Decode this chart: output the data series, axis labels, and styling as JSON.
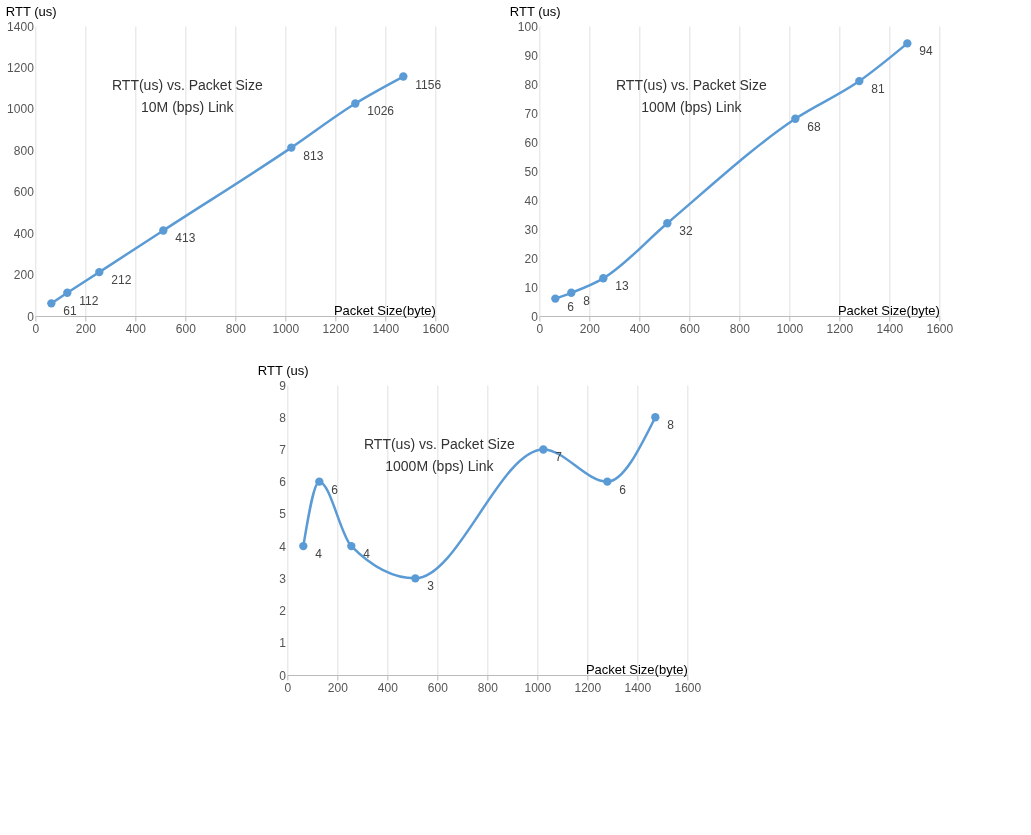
{
  "chart_data": [
    {
      "type": "line",
      "title": "RTT(us) vs. Packet Size",
      "subtitle": "10M (bps) Link",
      "xlabel": "Packet Size(byte)",
      "ylabel": "RTT (us)",
      "x": [
        64,
        128,
        256,
        512,
        1024,
        1280,
        1472
      ],
      "series": [
        {
          "color": "#5b9bd5",
          "values": [
            61,
            112,
            212,
            413,
            813,
            1026,
            1156
          ]
        }
      ],
      "xlim": [
        0,
        1600
      ],
      "xticks": [
        0,
        200,
        400,
        600,
        800,
        1000,
        1200,
        1400,
        1600
      ],
      "ylim": [
        0,
        1400
      ],
      "yticks": [
        0,
        200,
        400,
        600,
        800,
        1000,
        1200,
        1400
      ],
      "grid": "x",
      "marker": "circle",
      "data_labels": true
    },
    {
      "type": "line",
      "title": "RTT(us) vs. Packet Size",
      "subtitle": "100M (bps) Link",
      "xlabel": "Packet Size(byte)",
      "ylabel": "RTT (us)",
      "x": [
        64,
        128,
        256,
        512,
        1024,
        1280,
        1472
      ],
      "series": [
        {
          "color": "#5b9bd5",
          "values": [
            6,
            8,
            13,
            32,
            68,
            81,
            94
          ]
        }
      ],
      "xlim": [
        0,
        1600
      ],
      "xticks": [
        0,
        200,
        400,
        600,
        800,
        1000,
        1200,
        1400,
        1600
      ],
      "ylim": [
        0,
        100
      ],
      "yticks": [
        0,
        10,
        20,
        30,
        40,
        50,
        60,
        70,
        80,
        90,
        100
      ],
      "grid": "x",
      "marker": "circle",
      "data_labels": true
    },
    {
      "type": "line",
      "title": "RTT(us) vs. Packet Size",
      "subtitle": "1000M (bps) Link",
      "xlabel": "Packet Size(byte)",
      "ylabel": "RTT (us)",
      "x": [
        64,
        128,
        256,
        512,
        1024,
        1280,
        1472
      ],
      "series": [
        {
          "color": "#5b9bd5",
          "values": [
            4,
            6,
            4,
            3,
            7,
            6,
            8
          ]
        }
      ],
      "xlim": [
        0,
        1600
      ],
      "xticks": [
        0,
        200,
        400,
        600,
        800,
        1000,
        1200,
        1400,
        1600
      ],
      "ylim": [
        0,
        9
      ],
      "yticks": [
        0,
        1,
        2,
        3,
        4,
        5,
        6,
        7,
        8,
        9
      ],
      "grid": "x",
      "marker": "circle",
      "data_labels": true
    }
  ]
}
